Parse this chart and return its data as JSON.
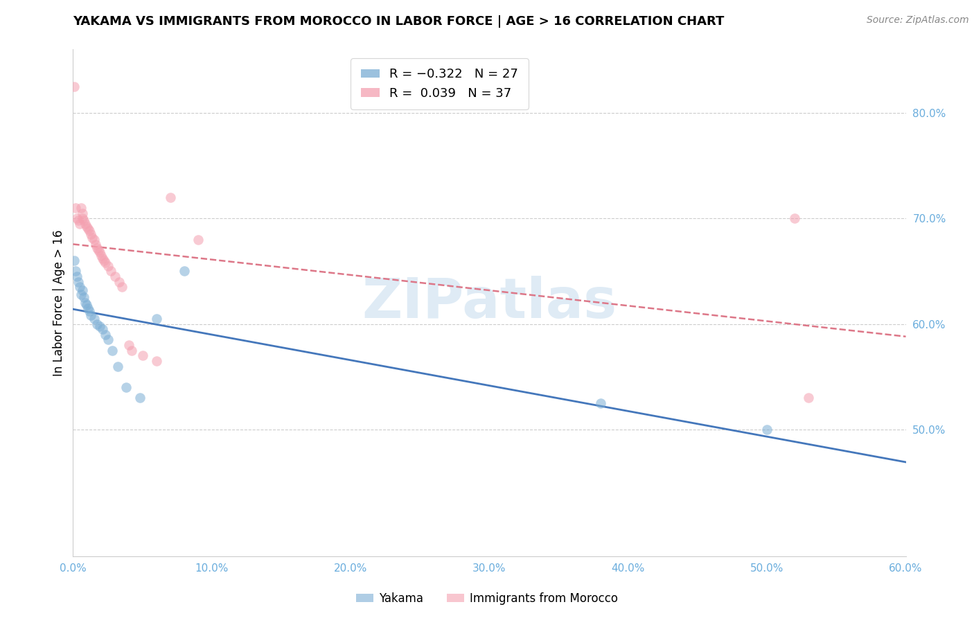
{
  "title": "YAKAMA VS IMMIGRANTS FROM MOROCCO IN LABOR FORCE | AGE > 16 CORRELATION CHART",
  "source": "Source: ZipAtlas.com",
  "ylabel": "In Labor Force | Age > 16",
  "xlim": [
    0.0,
    0.6
  ],
  "ylim": [
    0.38,
    0.86
  ],
  "watermark_text": "ZIPatlas",
  "yakama_x": [
    0.001,
    0.002,
    0.003,
    0.004,
    0.005,
    0.006,
    0.007,
    0.008,
    0.009,
    0.01,
    0.011,
    0.012,
    0.013,
    0.015,
    0.017,
    0.019,
    0.021,
    0.023,
    0.025,
    0.028,
    0.032,
    0.038,
    0.048,
    0.06,
    0.08,
    0.38,
    0.5
  ],
  "yakama_y": [
    0.66,
    0.65,
    0.645,
    0.64,
    0.635,
    0.628,
    0.632,
    0.625,
    0.62,
    0.618,
    0.615,
    0.612,
    0.608,
    0.605,
    0.6,
    0.598,
    0.595,
    0.59,
    0.585,
    0.575,
    0.56,
    0.54,
    0.53,
    0.605,
    0.65,
    0.525,
    0.5
  ],
  "morocco_x": [
    0.001,
    0.002,
    0.003,
    0.004,
    0.005,
    0.006,
    0.007,
    0.007,
    0.008,
    0.009,
    0.01,
    0.011,
    0.012,
    0.013,
    0.014,
    0.015,
    0.016,
    0.017,
    0.018,
    0.019,
    0.02,
    0.021,
    0.022,
    0.023,
    0.025,
    0.027,
    0.03,
    0.033,
    0.035,
    0.04,
    0.042,
    0.05,
    0.06,
    0.07,
    0.09,
    0.52,
    0.53
  ],
  "morocco_y": [
    0.825,
    0.71,
    0.7,
    0.698,
    0.695,
    0.71,
    0.705,
    0.7,
    0.698,
    0.695,
    0.692,
    0.69,
    0.688,
    0.685,
    0.682,
    0.68,
    0.675,
    0.672,
    0.67,
    0.668,
    0.665,
    0.662,
    0.66,
    0.658,
    0.655,
    0.65,
    0.645,
    0.64,
    0.635,
    0.58,
    0.575,
    0.57,
    0.565,
    0.72,
    0.68,
    0.7,
    0.53
  ],
  "yakama_color": "#7aadd4",
  "morocco_color": "#f4a0b0",
  "trendline_yakama_color": "#4477bb",
  "trendline_morocco_color": "#dd7788",
  "background_color": "#ffffff",
  "grid_color": "#cccccc",
  "tick_color": "#6aaddd",
  "x_ticks": [
    0.0,
    0.1,
    0.2,
    0.3,
    0.4,
    0.5,
    0.6
  ],
  "x_tick_labels": [
    "0.0%",
    "10.0%",
    "20.0%",
    "30.0%",
    "40.0%",
    "50.0%",
    "60.0%"
  ],
  "y_ticks": [
    0.5,
    0.6,
    0.7,
    0.8
  ],
  "y_tick_labels": [
    "50.0%",
    "60.0%",
    "70.0%",
    "80.0%"
  ],
  "legend_label_blue": "R = −0.322   N = 27",
  "legend_label_pink": "R =  0.039   N = 37",
  "bottom_legend_yakama": "Yakama",
  "bottom_legend_morocco": "Immigrants from Morocco",
  "title_fontsize": 13,
  "source_fontsize": 10,
  "tick_fontsize": 11,
  "legend_fontsize": 13,
  "ylabel_fontsize": 12,
  "scatter_size": 110,
  "scatter_alpha": 0.55
}
